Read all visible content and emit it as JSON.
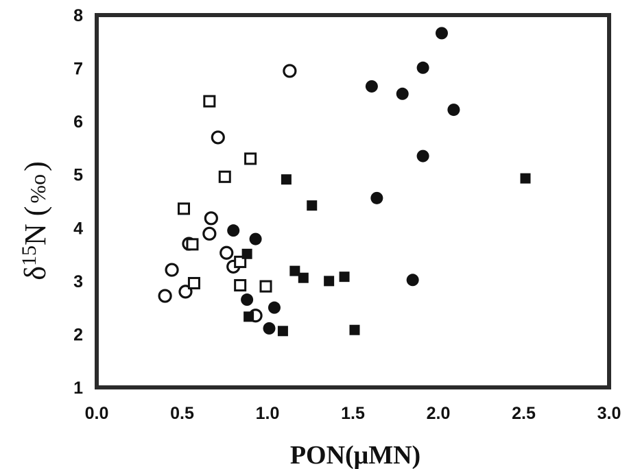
{
  "chart_data": {
    "type": "scatter",
    "title": "",
    "xlabel": "PON(μMN)",
    "ylabel": {
      "delta": "δ",
      "sup": "15",
      "main": "N (",
      "unit": "%o",
      "close": ")"
    },
    "xlim": [
      0.0,
      3.0
    ],
    "ylim": [
      1,
      8
    ],
    "xticks": [
      "0.0",
      "0.5",
      "1.0",
      "1.5",
      "2.0",
      "2.5",
      "3.0"
    ],
    "yticks": [
      "1",
      "2",
      "3",
      "4",
      "5",
      "6",
      "7",
      "8"
    ],
    "grid": false,
    "legend": "none",
    "series": [
      {
        "marker": "open-circle",
        "color": "#111111",
        "points": [
          [
            1.13,
            6.95
          ],
          [
            0.71,
            5.7
          ],
          [
            0.67,
            4.18
          ],
          [
            0.66,
            3.89
          ],
          [
            0.54,
            3.7
          ],
          [
            0.44,
            3.21
          ],
          [
            0.76,
            3.53
          ],
          [
            0.8,
            3.27
          ],
          [
            0.52,
            2.8
          ],
          [
            0.4,
            2.72
          ],
          [
            0.93,
            2.35
          ]
        ]
      },
      {
        "marker": "open-square",
        "color": "#111111",
        "points": [
          [
            0.66,
            6.38
          ],
          [
            0.9,
            5.3
          ],
          [
            0.75,
            4.96
          ],
          [
            0.51,
            4.36
          ],
          [
            0.56,
            3.69
          ],
          [
            0.84,
            3.36
          ],
          [
            0.57,
            2.96
          ],
          [
            0.84,
            2.92
          ],
          [
            0.99,
            2.9
          ]
        ]
      },
      {
        "marker": "filled-circle",
        "color": "#111111",
        "points": [
          [
            2.02,
            7.66
          ],
          [
            1.91,
            7.01
          ],
          [
            1.61,
            6.66
          ],
          [
            1.79,
            6.52
          ],
          [
            2.09,
            6.22
          ],
          [
            1.91,
            5.35
          ],
          [
            1.64,
            4.56
          ],
          [
            0.8,
            3.95
          ],
          [
            0.93,
            3.79
          ],
          [
            1.85,
            3.02
          ],
          [
            0.88,
            2.65
          ],
          [
            1.04,
            2.5
          ],
          [
            1.01,
            2.11
          ]
        ]
      },
      {
        "marker": "filled-square",
        "color": "#111111",
        "points": [
          [
            1.11,
            4.91
          ],
          [
            1.26,
            4.42
          ],
          [
            2.51,
            4.93
          ],
          [
            0.88,
            3.51
          ],
          [
            1.16,
            3.19
          ],
          [
            1.21,
            3.06
          ],
          [
            1.36,
            3.0
          ],
          [
            1.45,
            3.08
          ],
          [
            0.89,
            2.33
          ],
          [
            1.09,
            2.06
          ],
          [
            1.51,
            2.08
          ]
        ]
      }
    ]
  }
}
